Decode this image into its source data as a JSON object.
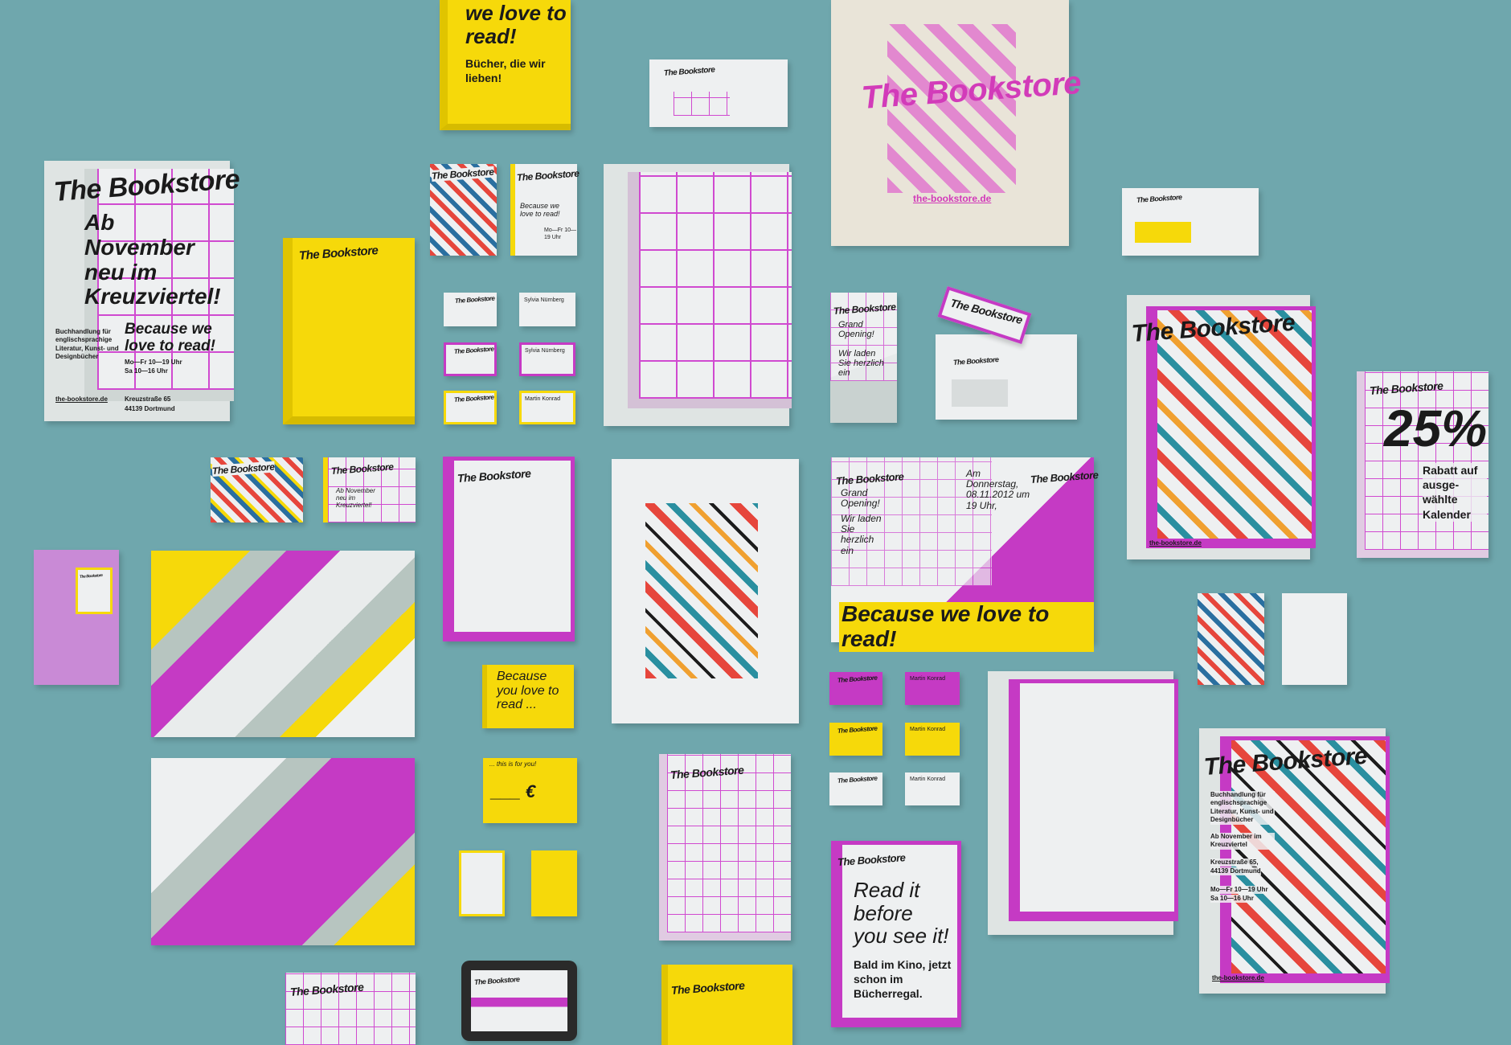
{
  "brand": "The Bookstore",
  "website": "the-bookstore.de",
  "colors": {
    "background": "#6fa7ad",
    "magenta": "#c53ac4",
    "yellow": "#f6d90a",
    "paper": "#eef0f1"
  },
  "yellow_flyer": {
    "headline": "we love to read!",
    "sub": "Bücher, die wir lieben!"
  },
  "poster_left": {
    "headline": "Ab November neu im Kreuzviertel!",
    "tagline": "Because we love to read!",
    "desc": "Buchhandlung für englischsprachige Literatur, Kunst- und Designbücher",
    "hours1": "Mo—Fr 10—19 Uhr",
    "hours2": "Sa 10—16 Uhr",
    "street": "Kreuzstraße 65",
    "city": "44139 Dortmund"
  },
  "small_flyer": {
    "tagline": "Because we love to read!",
    "hours": "Mo—Fr 10—19 Uhr"
  },
  "cards": {
    "name1": "Sylvia Nürnberg",
    "name2": "Martin Konrad"
  },
  "grand_opening": {
    "title": "Grand Opening!",
    "invite": "Wir laden Sie herzlich ein",
    "date": "Am Donnerstag, 08.11.2012 um 19 Uhr,",
    "banner": "Because we love to read!"
  },
  "discount": {
    "value": "25%",
    "text": "Rabatt auf ausge-wählte Kalender"
  },
  "yellow_card": {
    "text": "Because you love to read ..."
  },
  "voucher": {
    "title": "... this is for you!",
    "amount": "___ €"
  },
  "read_it": {
    "headline": "Read it before you see it!",
    "sub": "Bald im Kino, jetzt schon im Bücherregal."
  },
  "poster_bottom_right": {
    "desc": "Buchhandlung für englischsprachige Literatur, Kunst- und Designbücher",
    "opening": "Ab November im Kreuzviertel",
    "street": "Kreuzstraße 65,",
    "city": "44139 Dortmund",
    "hours1": "Mo—Fr 10—19 Uhr",
    "hours2": "Sa 10—16 Uhr"
  },
  "tablet": {
    "title": "The Bookstore"
  }
}
